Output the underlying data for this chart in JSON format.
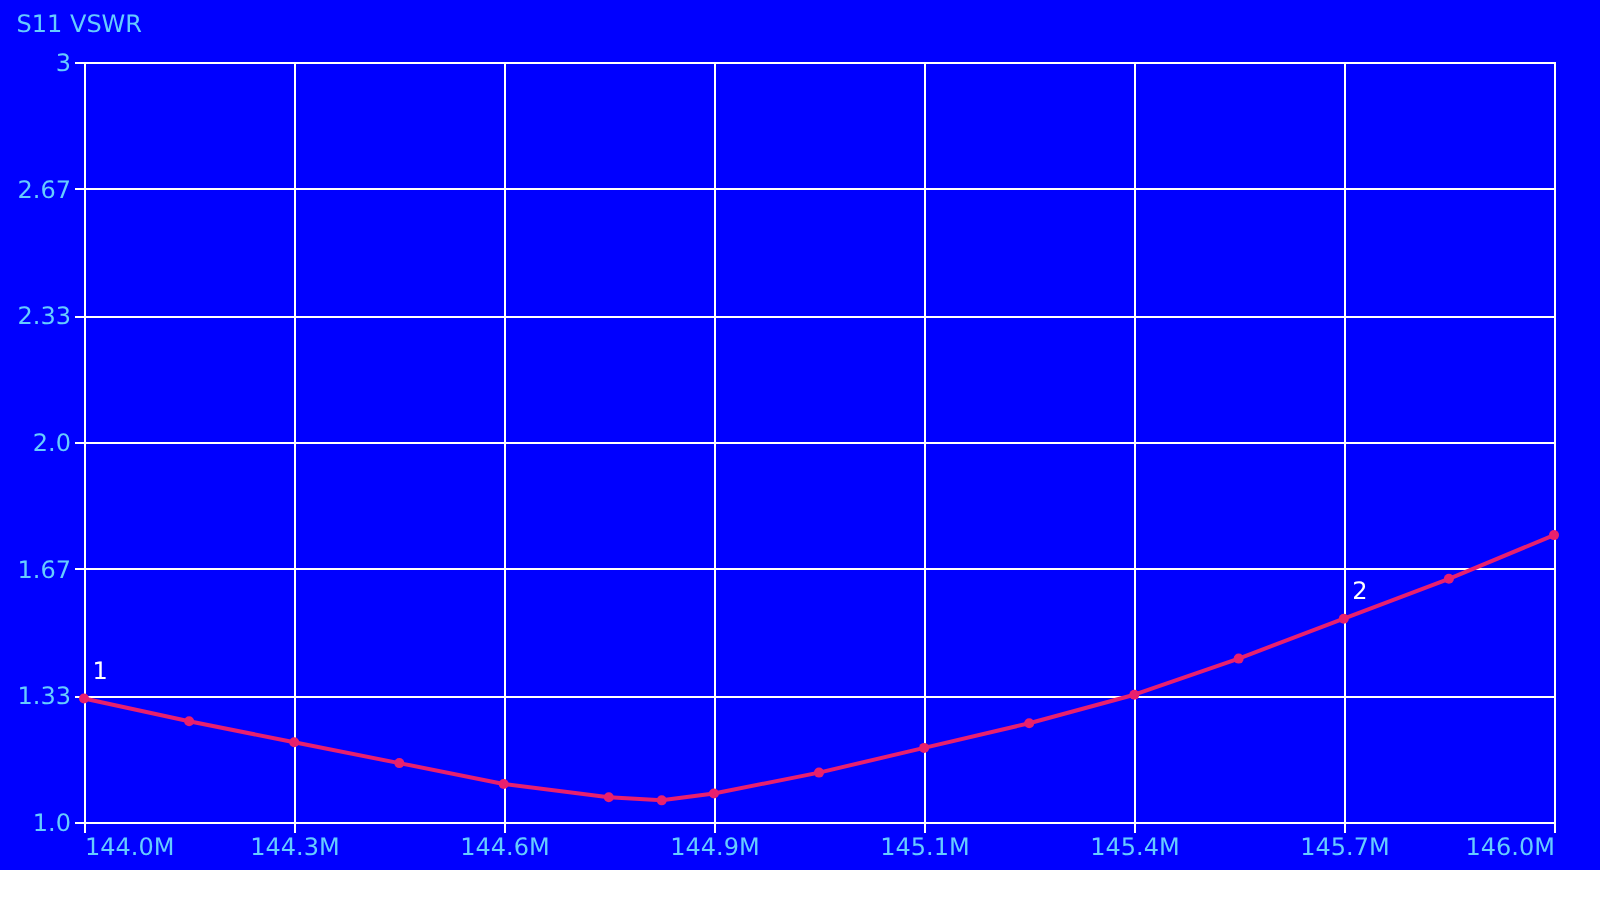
{
  "chart_data": {
    "type": "line",
    "title": "S11 VSWR",
    "x": [
      144.0,
      144.143,
      144.286,
      144.429,
      144.571,
      144.714,
      144.786,
      144.857,
      145.0,
      145.143,
      145.286,
      145.429,
      145.571,
      145.714,
      145.857,
      146.0
    ],
    "series": [
      {
        "color": "#e8206e",
        "values": [
          1.325,
          1.265,
          1.21,
          1.155,
          1.1,
          1.065,
          1.057,
          1.075,
          1.13,
          1.195,
          1.26,
          1.335,
          1.43,
          1.535,
          1.64,
          1.755
        ]
      }
    ],
    "xlim": [
      144.0,
      146.0
    ],
    "xticks": [
      {
        "value": 144.0,
        "label": "144.0M"
      },
      {
        "value": 144.2857,
        "label": "144.3M"
      },
      {
        "value": 144.5714,
        "label": "144.6M"
      },
      {
        "value": 144.8571,
        "label": "144.9M"
      },
      {
        "value": 145.1429,
        "label": "145.1M"
      },
      {
        "value": 145.4286,
        "label": "145.4M"
      },
      {
        "value": 145.7143,
        "label": "145.7M"
      },
      {
        "value": 146.0,
        "label": "146.0M"
      }
    ],
    "ylim": [
      1.0,
      3.0
    ],
    "yticks": [
      {
        "value": 1.0,
        "label": "1.0"
      },
      {
        "value": 1.3333,
        "label": "1.33"
      },
      {
        "value": 1.6667,
        "label": "1.67"
      },
      {
        "value": 2.0,
        "label": "2.0"
      },
      {
        "value": 2.3333,
        "label": "2.33"
      },
      {
        "value": 2.6667,
        "label": "2.67"
      },
      3
    ],
    "annotations": [
      {
        "text": "1",
        "x": 144.0,
        "y": 1.325
      },
      {
        "text": "2",
        "x": 145.714,
        "y": 1.535
      }
    ],
    "grid": true,
    "marker": "circle",
    "line_style": "solid"
  }
}
